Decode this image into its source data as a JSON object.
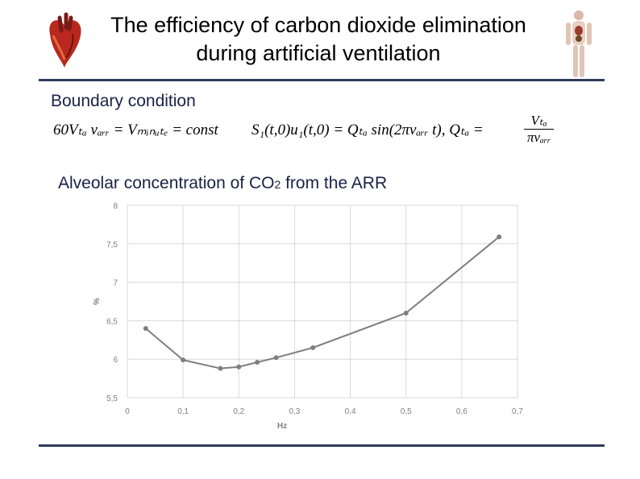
{
  "slide": {
    "title_line1": "The efficiency of carbon dioxide elimination",
    "title_line2": "during artificial ventilation",
    "subtitle": "Boundary condition",
    "formula_left": "60Vₜₐ vₐᵣᵣ = Vₘᵢₙᵤₜₑ = const",
    "formula_right": "S₁(t,0)u₁(t,0) = Qₜₐ sin(2πvₐᵣᵣ t), Qₜₐ =",
    "frac_num": "Vₜₐ",
    "frac_den": "πvₐᵣᵣ",
    "caption_pre": "Alveolar concentration of CO",
    "caption_sub": "2",
    "caption_post": " from the ARR"
  },
  "icons": {
    "left": "heart-icon",
    "right": "human-anatomy-icon"
  },
  "colors": {
    "rule": "#2f3b5c",
    "series": "#7f7f7f",
    "grid": "#d9d9d9",
    "tick_text": "#7f7f7f"
  },
  "chart_data": {
    "type": "line",
    "xlabel": "Hz",
    "ylabel": "%",
    "xlim": [
      0,
      0.7
    ],
    "ylim": [
      5.5,
      8
    ],
    "x_ticks": [
      0,
      0.1,
      0.2,
      0.3,
      0.4,
      0.5,
      0.6,
      0.7
    ],
    "y_ticks": [
      5.5,
      6,
      6.5,
      7,
      7.5,
      8
    ],
    "x_tick_labels": [
      "0",
      "0,1",
      "0,2",
      "0,3",
      "0,4",
      "0,5",
      "0,6",
      "0,7"
    ],
    "y_tick_labels": [
      "5,5",
      "6",
      "6,5",
      "7",
      "7,5",
      "8"
    ],
    "grid": true,
    "series": [
      {
        "x": [
          0.033,
          0.1,
          0.167,
          0.2,
          0.233,
          0.267,
          0.333,
          0.5,
          0.667
        ],
        "y": [
          6.4,
          5.99,
          5.88,
          5.9,
          5.96,
          6.02,
          6.15,
          6.6,
          7.59
        ]
      }
    ]
  }
}
